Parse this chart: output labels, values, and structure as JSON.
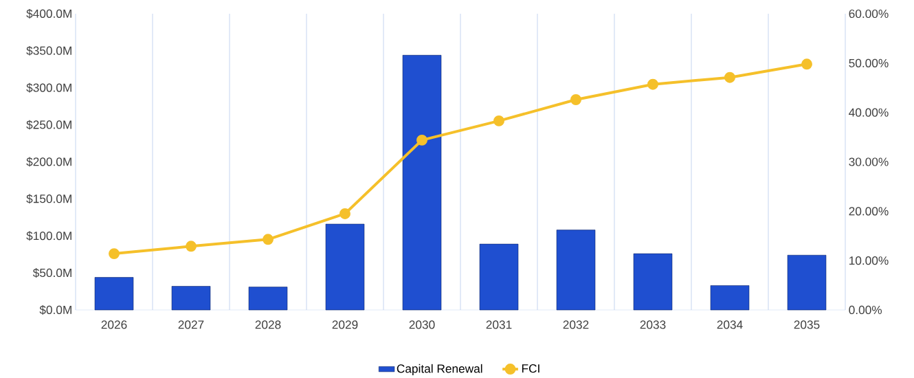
{
  "chart_data": {
    "type": "bar",
    "categories": [
      "2026",
      "2027",
      "2028",
      "2029",
      "2030",
      "2031",
      "2032",
      "2033",
      "2034",
      "2035"
    ],
    "series": [
      {
        "name": "Capital Renewal",
        "color": "#1f4fd0",
        "values": [
          44,
          32,
          31,
          116,
          344,
          89,
          108,
          76,
          33,
          74
        ]
      },
      {
        "name": "FCI",
        "type": "line",
        "axis": "y2",
        "color": "#f5c02a",
        "marker": "circle",
        "line_style": "solid",
        "values": [
          11.4,
          12.9,
          14.3,
          19.5,
          34.4,
          38.3,
          42.6,
          45.7,
          47.1,
          49.8
        ]
      }
    ],
    "ylim": [
      0,
      400
    ],
    "yticks": [
      {
        "value": 0,
        "label": "$0.0M"
      },
      {
        "value": 50,
        "label": "$50.0M"
      },
      {
        "value": 100,
        "label": "$100.0M"
      },
      {
        "value": 150,
        "label": "$150.0M"
      },
      {
        "value": 200,
        "label": "$200.0M"
      },
      {
        "value": 250,
        "label": "$250.0M"
      },
      {
        "value": 300,
        "label": "$300.0M"
      },
      {
        "value": 350,
        "label": "$350.0M"
      },
      {
        "value": 400,
        "label": "$400.0M"
      }
    ],
    "y2lim": [
      0,
      60
    ],
    "y2ticks": [
      {
        "value": 0,
        "label": "0.00%"
      },
      {
        "value": 10,
        "label": "10.00%"
      },
      {
        "value": 20,
        "label": "20.00%"
      },
      {
        "value": 30,
        "label": "30.00%"
      },
      {
        "value": 40,
        "label": "40.00%"
      },
      {
        "value": 50,
        "label": "50.00%"
      },
      {
        "value": 60,
        "label": "60.00%"
      }
    ],
    "grid": "x",
    "legend": "bottom"
  }
}
